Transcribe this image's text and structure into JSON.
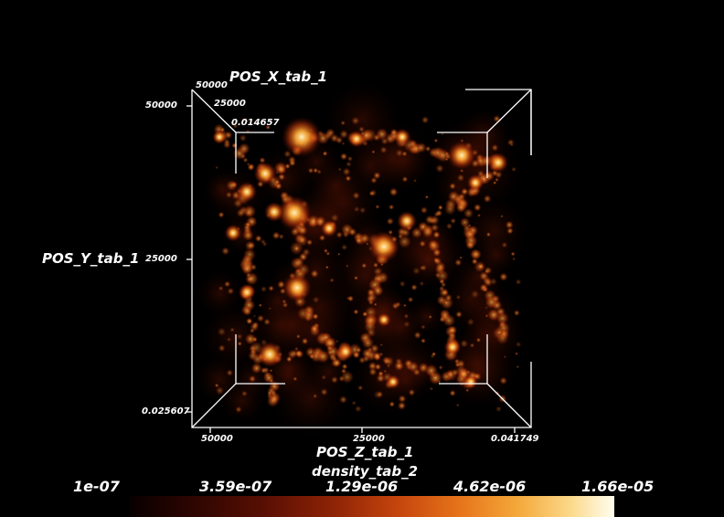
{
  "axes": {
    "x_title": "POS_X_tab_1",
    "y_title": "POS_Y_tab_1",
    "z_title": "POS_Z_tab_1",
    "x_ticks": [
      "50000",
      "25000",
      "0.014657"
    ],
    "y_ticks": [
      "50000",
      "25000",
      "0.025607"
    ],
    "z_ticks": [
      "50000",
      "25000",
      "0.041749"
    ]
  },
  "colorbar": {
    "title": "density_tab_2",
    "ticks": [
      "1e-07",
      "3.59e-07",
      "1.29e-06",
      "4.62e-06",
      "1.66e-05"
    ],
    "colormap": "black-red-orange-yellow-white"
  }
}
